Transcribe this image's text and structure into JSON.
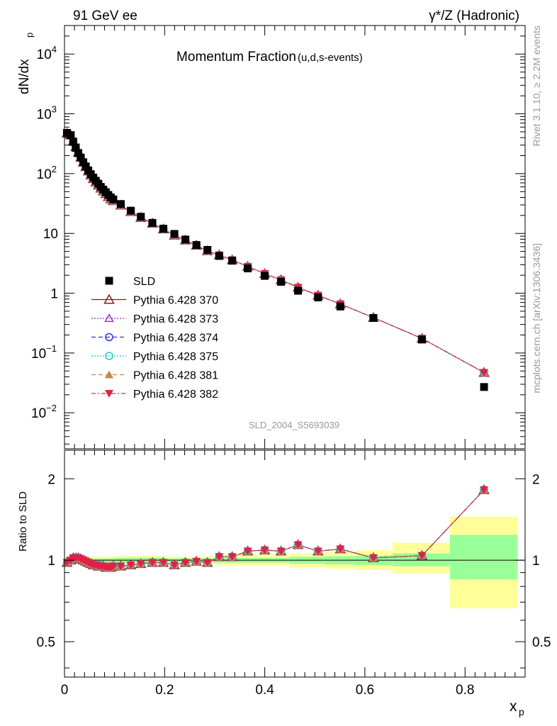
{
  "header": {
    "left": "91 GeV ee",
    "right": "γ*/Z (Hadronic)"
  },
  "side_text": {
    "rivet": "Rivet 3.1.10, ≥ 2.2M events",
    "mcplots": "mcplots.cern.ch [arXiv:1306.3436]"
  },
  "chart_data": [
    {
      "type": "scatter",
      "title": "Momentum Fraction",
      "subtitle": "(u,d,s-events)",
      "ylabel": "dN/dx",
      "ylabel_sub": "p",
      "yscale": "log",
      "ylim": [
        0.0025,
        30000
      ],
      "xlim": [
        0,
        0.92
      ],
      "y_ticks": [
        "10^4",
        "10^3",
        "10^2",
        "10",
        "1",
        "10^-1",
        "10^-2"
      ],
      "watermark": "SLD_2004_S5693039",
      "legend_position": "center-left",
      "x": [
        0.005,
        0.0125,
        0.0175,
        0.0225,
        0.0275,
        0.0325,
        0.0375,
        0.0425,
        0.0475,
        0.0525,
        0.0575,
        0.0625,
        0.0675,
        0.0725,
        0.0775,
        0.0825,
        0.0875,
        0.0925,
        0.0975,
        0.1125,
        0.1325,
        0.1525,
        0.1755,
        0.1975,
        0.2195,
        0.2415,
        0.2635,
        0.2855,
        0.309,
        0.335,
        0.366,
        0.4,
        0.4325,
        0.4665,
        0.5065,
        0.551,
        0.617,
        0.714,
        0.838
      ],
      "series": [
        {
          "name": "SLD",
          "values": [
            480,
            440,
            340,
            270,
            220,
            185,
            155,
            132,
            113,
            98,
            86,
            76,
            68,
            60,
            54,
            49,
            44,
            40,
            37,
            31,
            24,
            19,
            15,
            12,
            9.8,
            7.9,
            6.4,
            5.3,
            4.2,
            3.5,
            2.6,
            1.95,
            1.55,
            1.1,
            0.85,
            0.6,
            0.385,
            0.168,
            0.027
          ],
          "color": "#000000"
        },
        {
          "name": "Pythia 6.428 370",
          "values": [
            470,
            440,
            350,
            280,
            225,
            188,
            155,
            130,
            110,
            94,
            82,
            72,
            64,
            57,
            51,
            46,
            41,
            37.5,
            35,
            29.5,
            23,
            18.4,
            14.8,
            11.8,
            9.3,
            7.7,
            6.3,
            5.1,
            4.35,
            3.6,
            2.8,
            2.12,
            1.67,
            1.25,
            0.92,
            0.66,
            0.39,
            0.175,
            0.047
          ],
          "color": "#8b1a1a"
        },
        {
          "name": "Pythia 6.428 373",
          "values": [
            470,
            440,
            350,
            280,
            225,
            188,
            155,
            130,
            110,
            94,
            82,
            72,
            64,
            57,
            51,
            46,
            41,
            37.5,
            35,
            29.5,
            23,
            18.4,
            14.8,
            11.8,
            9.3,
            7.7,
            6.3,
            5.1,
            4.35,
            3.6,
            2.8,
            2.12,
            1.67,
            1.25,
            0.92,
            0.66,
            0.39,
            0.175,
            0.047
          ],
          "color": "#9932cc"
        },
        {
          "name": "Pythia 6.428 374",
          "values": [
            470,
            440,
            350,
            280,
            225,
            188,
            155,
            130,
            110,
            94,
            82,
            72,
            64,
            57,
            51,
            46,
            41,
            37.5,
            35,
            29.5,
            23,
            18.4,
            14.8,
            11.8,
            9.3,
            7.7,
            6.3,
            5.1,
            4.35,
            3.6,
            2.8,
            2.12,
            1.67,
            1.25,
            0.92,
            0.66,
            0.39,
            0.175,
            0.047
          ],
          "color": "#3333dd"
        },
        {
          "name": "Pythia 6.428 375",
          "values": [
            470,
            440,
            350,
            280,
            225,
            188,
            155,
            130,
            110,
            94,
            82,
            72,
            64,
            57,
            51,
            46,
            41,
            37.5,
            35,
            29.5,
            23,
            18.4,
            14.8,
            11.8,
            9.3,
            7.7,
            6.3,
            5.1,
            4.35,
            3.6,
            2.8,
            2.12,
            1.67,
            1.25,
            0.92,
            0.66,
            0.39,
            0.175,
            0.047
          ],
          "color": "#20d0c0"
        },
        {
          "name": "Pythia 6.428 381",
          "values": [
            470,
            440,
            350,
            280,
            225,
            188,
            155,
            130,
            110,
            94,
            82,
            72,
            64,
            57,
            51,
            46,
            41,
            37.5,
            35,
            29.5,
            23,
            18.4,
            14.8,
            11.8,
            9.3,
            7.7,
            6.3,
            5.1,
            4.35,
            3.6,
            2.8,
            2.12,
            1.67,
            1.25,
            0.92,
            0.66,
            0.39,
            0.175,
            0.047
          ],
          "color": "#c08850"
        },
        {
          "name": "Pythia 6.428 382",
          "values": [
            470,
            440,
            350,
            280,
            225,
            188,
            155,
            130,
            110,
            94,
            82,
            72,
            64,
            57,
            51,
            46,
            41,
            37.5,
            35,
            29.5,
            23,
            18.4,
            14.8,
            11.8,
            9.3,
            7.7,
            6.3,
            5.1,
            4.35,
            3.6,
            2.8,
            2.12,
            1.67,
            1.25,
            0.92,
            0.66,
            0.39,
            0.175,
            0.047
          ],
          "color": "#e0204a"
        }
      ]
    },
    {
      "type": "line",
      "ylabel": "Ratio to SLD",
      "xlabel": "x",
      "xlabel_sub": "p",
      "ylim": [
        0.37,
        2.55
      ],
      "xlim": [
        0,
        0.92
      ],
      "x_ticks": [
        "0",
        "0.2",
        "0.4",
        "0.6",
        "0.8"
      ],
      "y_ticks": [
        "0.5",
        "1",
        "2"
      ],
      "x": [
        0.005,
        0.0125,
        0.0175,
        0.0225,
        0.0275,
        0.0325,
        0.0375,
        0.0425,
        0.0475,
        0.0525,
        0.0575,
        0.0625,
        0.0675,
        0.0725,
        0.0775,
        0.0825,
        0.0875,
        0.0925,
        0.0975,
        0.1125,
        0.1325,
        0.1525,
        0.1755,
        0.1975,
        0.2195,
        0.2415,
        0.2635,
        0.2855,
        0.309,
        0.335,
        0.366,
        0.4,
        0.4325,
        0.4665,
        0.5065,
        0.551,
        0.617,
        0.714,
        0.838
      ],
      "ratio_values": [
        0.98,
        1.0,
        1.02,
        1.02,
        1.02,
        1.01,
        1.0,
        0.99,
        0.98,
        0.97,
        0.96,
        0.96,
        0.95,
        0.95,
        0.95,
        0.94,
        0.94,
        0.94,
        0.95,
        0.95,
        0.96,
        0.97,
        0.98,
        0.98,
        0.96,
        0.98,
        0.99,
        0.98,
        1.03,
        1.03,
        1.08,
        1.09,
        1.08,
        1.14,
        1.08,
        1.1,
        1.02,
        1.04,
        1.82
      ],
      "bands": [
        {
          "x0": 0.0,
          "x1": 0.1,
          "inner": [
            0.985,
            1.015
          ],
          "outer": [
            0.97,
            1.03
          ]
        },
        {
          "x0": 0.1,
          "x1": 0.2,
          "inner": [
            0.98,
            1.02
          ],
          "outer": [
            0.96,
            1.04
          ]
        },
        {
          "x0": 0.2,
          "x1": 0.3,
          "inner": [
            0.985,
            1.015
          ],
          "outer": [
            0.97,
            1.03
          ]
        },
        {
          "x0": 0.3,
          "x1": 0.45,
          "inner": [
            0.98,
            1.02
          ],
          "outer": [
            0.96,
            1.05
          ]
        },
        {
          "x0": 0.45,
          "x1": 0.52,
          "inner": [
            0.97,
            1.03
          ],
          "outer": [
            0.94,
            1.06
          ]
        },
        {
          "x0": 0.52,
          "x1": 0.58,
          "inner": [
            0.965,
            1.035
          ],
          "outer": [
            0.93,
            1.07
          ]
        },
        {
          "x0": 0.58,
          "x1": 0.655,
          "inner": [
            0.96,
            1.04
          ],
          "outer": [
            0.92,
            1.09
          ]
        },
        {
          "x0": 0.655,
          "x1": 0.77,
          "inner": [
            0.95,
            1.06
          ],
          "outer": [
            0.895,
            1.16
          ]
        },
        {
          "x0": 0.77,
          "x1": 0.905,
          "inner": [
            0.85,
            1.24
          ],
          "outer": [
            0.665,
            1.45
          ]
        }
      ]
    }
  ],
  "colors": {
    "band_inner": "#99ff99",
    "band_outer": "#ffff99"
  }
}
